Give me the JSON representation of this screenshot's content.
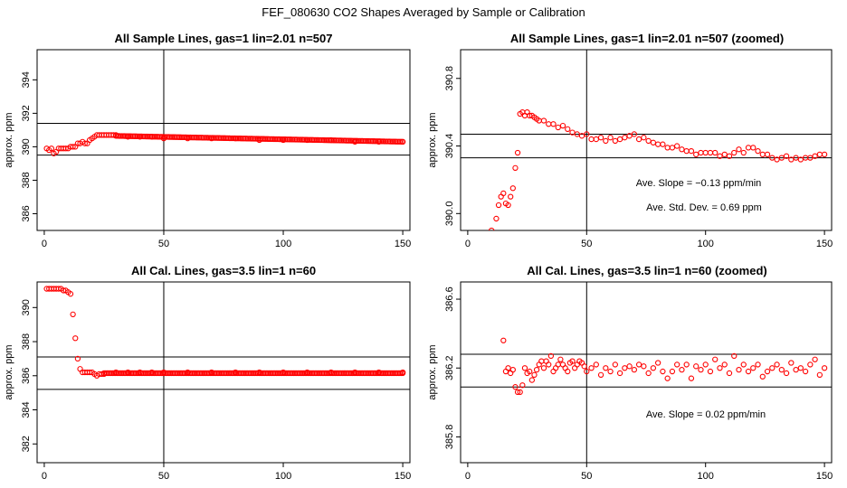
{
  "page_title": "FEF_080630  CO2 Shapes Averaged by Sample or Calibration",
  "chart_data": [
    {
      "type": "scatter",
      "title": "All Sample Lines, gas=1 lin=2.01 n=507",
      "ylabel": "approx. ppm",
      "xlim": [
        -3,
        153
      ],
      "ylim": [
        385,
        395.8
      ],
      "xticks": [
        0,
        50,
        100,
        150
      ],
      "xtick_labels": [
        "0",
        "50",
        "100",
        "150"
      ],
      "yticks": [
        386,
        388,
        390,
        392,
        394
      ],
      "ytick_labels": [
        "386",
        "388",
        "390",
        "392",
        "394"
      ],
      "hlines": [
        391.4,
        389.5
      ],
      "vline": 50,
      "series": [
        {
          "color": "#ff0000",
          "x": [
            1,
            2,
            3,
            4,
            5,
            6,
            7,
            8,
            9,
            10,
            11,
            12,
            13,
            14,
            15,
            16,
            17,
            18,
            19,
            20,
            21,
            22,
            23,
            24,
            25,
            26,
            27,
            28,
            29,
            30,
            35,
            40,
            45,
            50,
            60,
            70,
            80,
            90,
            100,
            110,
            120,
            130,
            140,
            150
          ],
          "y": [
            389.9,
            389.8,
            389.9,
            389.6,
            389.7,
            389.9,
            389.9,
            389.9,
            389.9,
            389.9,
            390.0,
            390.0,
            390.0,
            390.2,
            390.2,
            390.3,
            390.2,
            390.2,
            390.4,
            390.5,
            390.6,
            390.7,
            390.7,
            390.7,
            390.7,
            390.7,
            390.7,
            390.7,
            390.7,
            390.7,
            390.6,
            390.6,
            390.6,
            390.5,
            390.5,
            390.5,
            390.5,
            390.4,
            390.4,
            390.4,
            390.4,
            390.3,
            390.3,
            390.3
          ],
          "dense_trend_x": [
            30,
            150
          ],
          "dense_trend_y": [
            390.65,
            390.3
          ]
        }
      ]
    },
    {
      "type": "scatter",
      "title": "All Sample Lines, gas=1 lin=2.01 n=507 (zoomed)",
      "ylabel": "approx. ppm",
      "xlim": [
        -3,
        153
      ],
      "ylim": [
        389.9,
        390.97
      ],
      "xticks": [
        0,
        50,
        100,
        150
      ],
      "xtick_labels": [
        "0",
        "50",
        "100",
        "150"
      ],
      "yticks": [
        390.0,
        390.4,
        390.8
      ],
      "ytick_labels": [
        "390.0",
        "390.4",
        "390.8"
      ],
      "hlines": [
        390.47,
        390.33
      ],
      "vline": 50,
      "annotations": [
        "Ave. Slope =  −0.13  ppm/min",
        "Ave. Std. Dev. =  0.69  ppm"
      ],
      "series": [
        {
          "color": "#ff0000",
          "x": [
            10,
            12,
            13,
            14,
            15,
            16,
            17,
            18,
            19,
            20,
            21,
            22,
            23,
            24,
            25,
            26,
            27,
            28,
            29,
            30,
            32,
            34,
            36,
            38,
            40,
            42,
            44,
            46,
            48,
            50,
            52,
            54,
            56,
            58,
            60,
            62,
            64,
            66,
            68,
            70,
            72,
            74,
            76,
            78,
            80,
            82,
            84,
            86,
            88,
            90,
            92,
            94,
            96,
            98,
            100,
            102,
            104,
            106,
            108,
            110,
            112,
            114,
            116,
            118,
            120,
            122,
            124,
            126,
            128,
            130,
            132,
            134,
            136,
            138,
            140,
            142,
            144,
            146,
            148,
            150
          ],
          "y": [
            389.9,
            389.97,
            390.05,
            390.1,
            390.12,
            390.06,
            390.05,
            390.1,
            390.15,
            390.27,
            390.36,
            390.59,
            390.6,
            390.58,
            390.6,
            390.58,
            390.58,
            390.57,
            390.56,
            390.55,
            390.55,
            390.53,
            390.53,
            390.51,
            390.52,
            390.5,
            390.48,
            390.47,
            390.46,
            390.47,
            390.44,
            390.44,
            390.45,
            390.43,
            390.45,
            390.43,
            390.44,
            390.45,
            390.46,
            390.47,
            390.44,
            390.45,
            390.43,
            390.42,
            390.41,
            390.41,
            390.39,
            390.39,
            390.4,
            390.38,
            390.37,
            390.37,
            390.35,
            390.36,
            390.36,
            390.36,
            390.36,
            390.34,
            390.35,
            390.34,
            390.36,
            390.38,
            390.36,
            390.39,
            390.39,
            390.37,
            390.35,
            390.35,
            390.33,
            390.32,
            390.33,
            390.34,
            390.32,
            390.33,
            390.32,
            390.33,
            390.33,
            390.34,
            390.35,
            390.35
          ]
        }
      ]
    },
    {
      "type": "scatter",
      "title": "All Cal. Lines, gas=3.5 lin=1 n=60",
      "ylabel": "approx. ppm",
      "xlim": [
        -3,
        153
      ],
      "ylim": [
        380.9,
        391.5
      ],
      "xticks": [
        0,
        50,
        100,
        150
      ],
      "xtick_labels": [
        "0",
        "50",
        "100",
        "150"
      ],
      "yticks": [
        382,
        384,
        386,
        388,
        390
      ],
      "ytick_labels": [
        "382",
        "384",
        "386",
        "388",
        "390"
      ],
      "hlines": [
        387.1,
        385.2
      ],
      "vline": 50,
      "series": [
        {
          "color": "#ff0000",
          "x": [
            1,
            2,
            3,
            4,
            5,
            6,
            7,
            8,
            9,
            10,
            11,
            12,
            13,
            14,
            15,
            16,
            17,
            18,
            19,
            20,
            21,
            22,
            23,
            24,
            25,
            30,
            35,
            40,
            45,
            50,
            60,
            70,
            80,
            90,
            100,
            110,
            120,
            130,
            140,
            150
          ],
          "y": [
            391.1,
            391.1,
            391.1,
            391.1,
            391.1,
            391.1,
            391.1,
            391.0,
            391.0,
            390.9,
            390.8,
            389.6,
            388.2,
            387.0,
            386.4,
            386.2,
            386.2,
            386.2,
            386.2,
            386.2,
            386.1,
            386.0,
            386.1,
            386.1,
            386.1,
            386.2,
            386.2,
            386.2,
            386.2,
            386.2,
            386.2,
            386.2,
            386.2,
            386.2,
            386.2,
            386.2,
            386.2,
            386.2,
            386.2,
            386.2
          ],
          "dense_trend_x": [
            25,
            150
          ],
          "dense_trend_y": [
            386.15,
            386.15
          ]
        }
      ]
    },
    {
      "type": "scatter",
      "title": "All Cal. Lines, gas=3.5 lin=1 n=60 (zoomed)",
      "ylabel": "approx. ppm",
      "xlim": [
        -3,
        153
      ],
      "ylim": [
        385.65,
        386.7
      ],
      "xticks": [
        0,
        50,
        100,
        150
      ],
      "xtick_labels": [
        "0",
        "50",
        "100",
        "150"
      ],
      "yticks": [
        385.8,
        386.2,
        386.6
      ],
      "ytick_labels": [
        "385.8",
        "386.2",
        "386.6"
      ],
      "hlines": [
        386.28,
        386.09
      ],
      "vline": 50,
      "annotations": [
        "Ave. Slope =  0.02  ppm/min"
      ],
      "series": [
        {
          "color": "#ff0000",
          "x": [
            15,
            16,
            17,
            18,
            19,
            20,
            21,
            22,
            23,
            24,
            25,
            26,
            27,
            28,
            29,
            30,
            31,
            32,
            33,
            34,
            35,
            36,
            37,
            38,
            39,
            40,
            41,
            42,
            43,
            44,
            45,
            46,
            47,
            48,
            49,
            50,
            52,
            54,
            56,
            58,
            60,
            62,
            64,
            66,
            68,
            70,
            72,
            74,
            76,
            78,
            80,
            82,
            84,
            86,
            88,
            90,
            92,
            94,
            96,
            98,
            100,
            102,
            104,
            106,
            108,
            110,
            112,
            114,
            116,
            118,
            120,
            122,
            124,
            126,
            128,
            130,
            132,
            134,
            136,
            138,
            140,
            142,
            144,
            146,
            148,
            150
          ],
          "y": [
            386.36,
            386.18,
            386.2,
            386.17,
            386.19,
            386.09,
            386.06,
            386.06,
            386.1,
            386.2,
            386.17,
            386.18,
            386.13,
            386.16,
            386.19,
            386.22,
            386.24,
            386.2,
            386.24,
            386.22,
            386.27,
            386.18,
            386.2,
            386.22,
            386.25,
            386.22,
            386.2,
            386.18,
            386.23,
            386.24,
            386.2,
            386.22,
            386.24,
            386.23,
            386.21,
            386.18,
            386.2,
            386.22,
            386.16,
            386.2,
            386.18,
            386.22,
            386.17,
            386.2,
            386.21,
            386.19,
            386.22,
            386.21,
            386.17,
            386.2,
            386.23,
            386.18,
            386.14,
            386.18,
            386.22,
            386.19,
            386.22,
            386.14,
            386.21,
            386.19,
            386.22,
            386.18,
            386.25,
            386.2,
            386.22,
            386.17,
            386.27,
            386.19,
            386.22,
            386.18,
            386.2,
            386.22,
            386.15,
            386.18,
            386.2,
            386.22,
            386.19,
            386.17,
            386.23,
            386.19,
            386.2,
            386.18,
            386.22,
            386.25,
            386.16,
            386.2
          ]
        }
      ]
    }
  ]
}
